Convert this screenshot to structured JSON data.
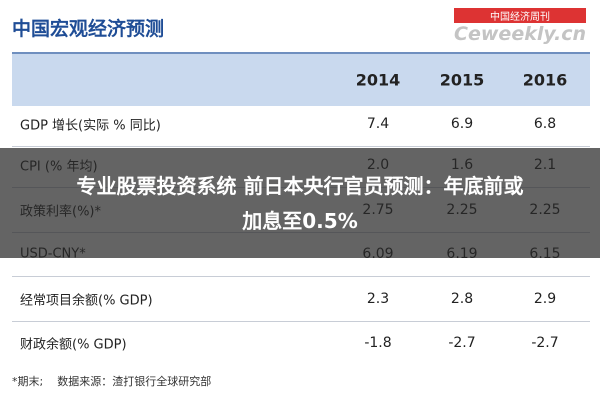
{
  "header": {
    "title": "中国宏观经济预测",
    "watermark_cn": "中国经济周刊",
    "watermark_en": "Ceweekly.cn"
  },
  "table": {
    "columns": [
      "2014",
      "2015",
      "2016"
    ],
    "rows": [
      [
        "GDP 增长(实际 % 同比)",
        "7.4",
        "6.9",
        "6.8"
      ],
      [
        "CPI (% 年均)",
        "2.0",
        "1.6",
        "2.1"
      ],
      [
        "政策利率(%)*",
        "2.75",
        "2.25",
        "2.25"
      ],
      [
        "USD-CNY*",
        "6.09",
        "6.19",
        "6.15"
      ],
      [
        "经常项目余额(% GDP)",
        "2.3",
        "2.8",
        "2.9"
      ],
      [
        "财政余额(% GDP)",
        "-1.8",
        "-2.7",
        "-2.7"
      ]
    ]
  },
  "footnote": "*期末;    数据来源：渣打银行全球研究部",
  "banner": {
    "line1": "专业股票投资系统 前日本央行官员预测：年底前或",
    "line2": "加息至0.5%"
  }
}
